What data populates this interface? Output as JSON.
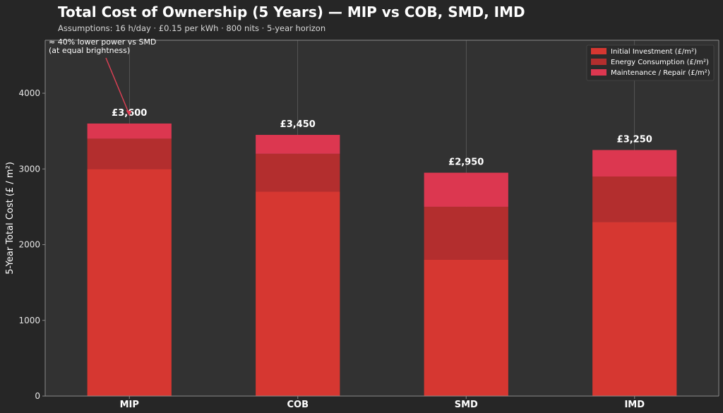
{
  "chart_data": {
    "type": "bar",
    "stacked": true,
    "title": "Total Cost of Ownership (5 Years) — MIP vs COB, SMD, IMD",
    "subtitle": "Assumptions: 16 h/day · £0.15 per kWh · 800 nits · 5-year horizon",
    "xlabel": "",
    "ylabel": "5-Year Total Cost (£ / m²)",
    "ylim": [
      0,
      4700
    ],
    "yticks": [
      0,
      1000,
      2000,
      3000,
      4000
    ],
    "grid": "vertical",
    "legend_position": "top-right",
    "categories": [
      "MIP",
      "COB",
      "SMD",
      "IMD"
    ],
    "series": [
      {
        "name": "Initial Investment (£/m²)",
        "values": [
          3000,
          2700,
          1800,
          2300
        ],
        "color": "#d63731"
      },
      {
        "name": "Energy Consumption (£/m²)",
        "values": [
          400,
          500,
          700,
          600
        ],
        "color": "#b32e2e"
      },
      {
        "name": "Maintenance / Repair (£/m²)",
        "values": [
          200,
          250,
          450,
          350
        ],
        "color": "#dc3750"
      }
    ],
    "totals": [
      3600,
      3450,
      2950,
      3250
    ],
    "total_labels": [
      "£3,600",
      "£3,450",
      "£2,950",
      "£3,250"
    ],
    "annotation": {
      "lines": [
        "≈ 40% lower power vs SMD",
        "(at equal brightness)"
      ],
      "target_category": "MIP",
      "target_value": 3700,
      "color": "#e04055"
    }
  },
  "colors": {
    "background": "#262626",
    "plot_background": "#323232",
    "axis": "#8a8a8a",
    "grid": "#9a9a9a"
  }
}
